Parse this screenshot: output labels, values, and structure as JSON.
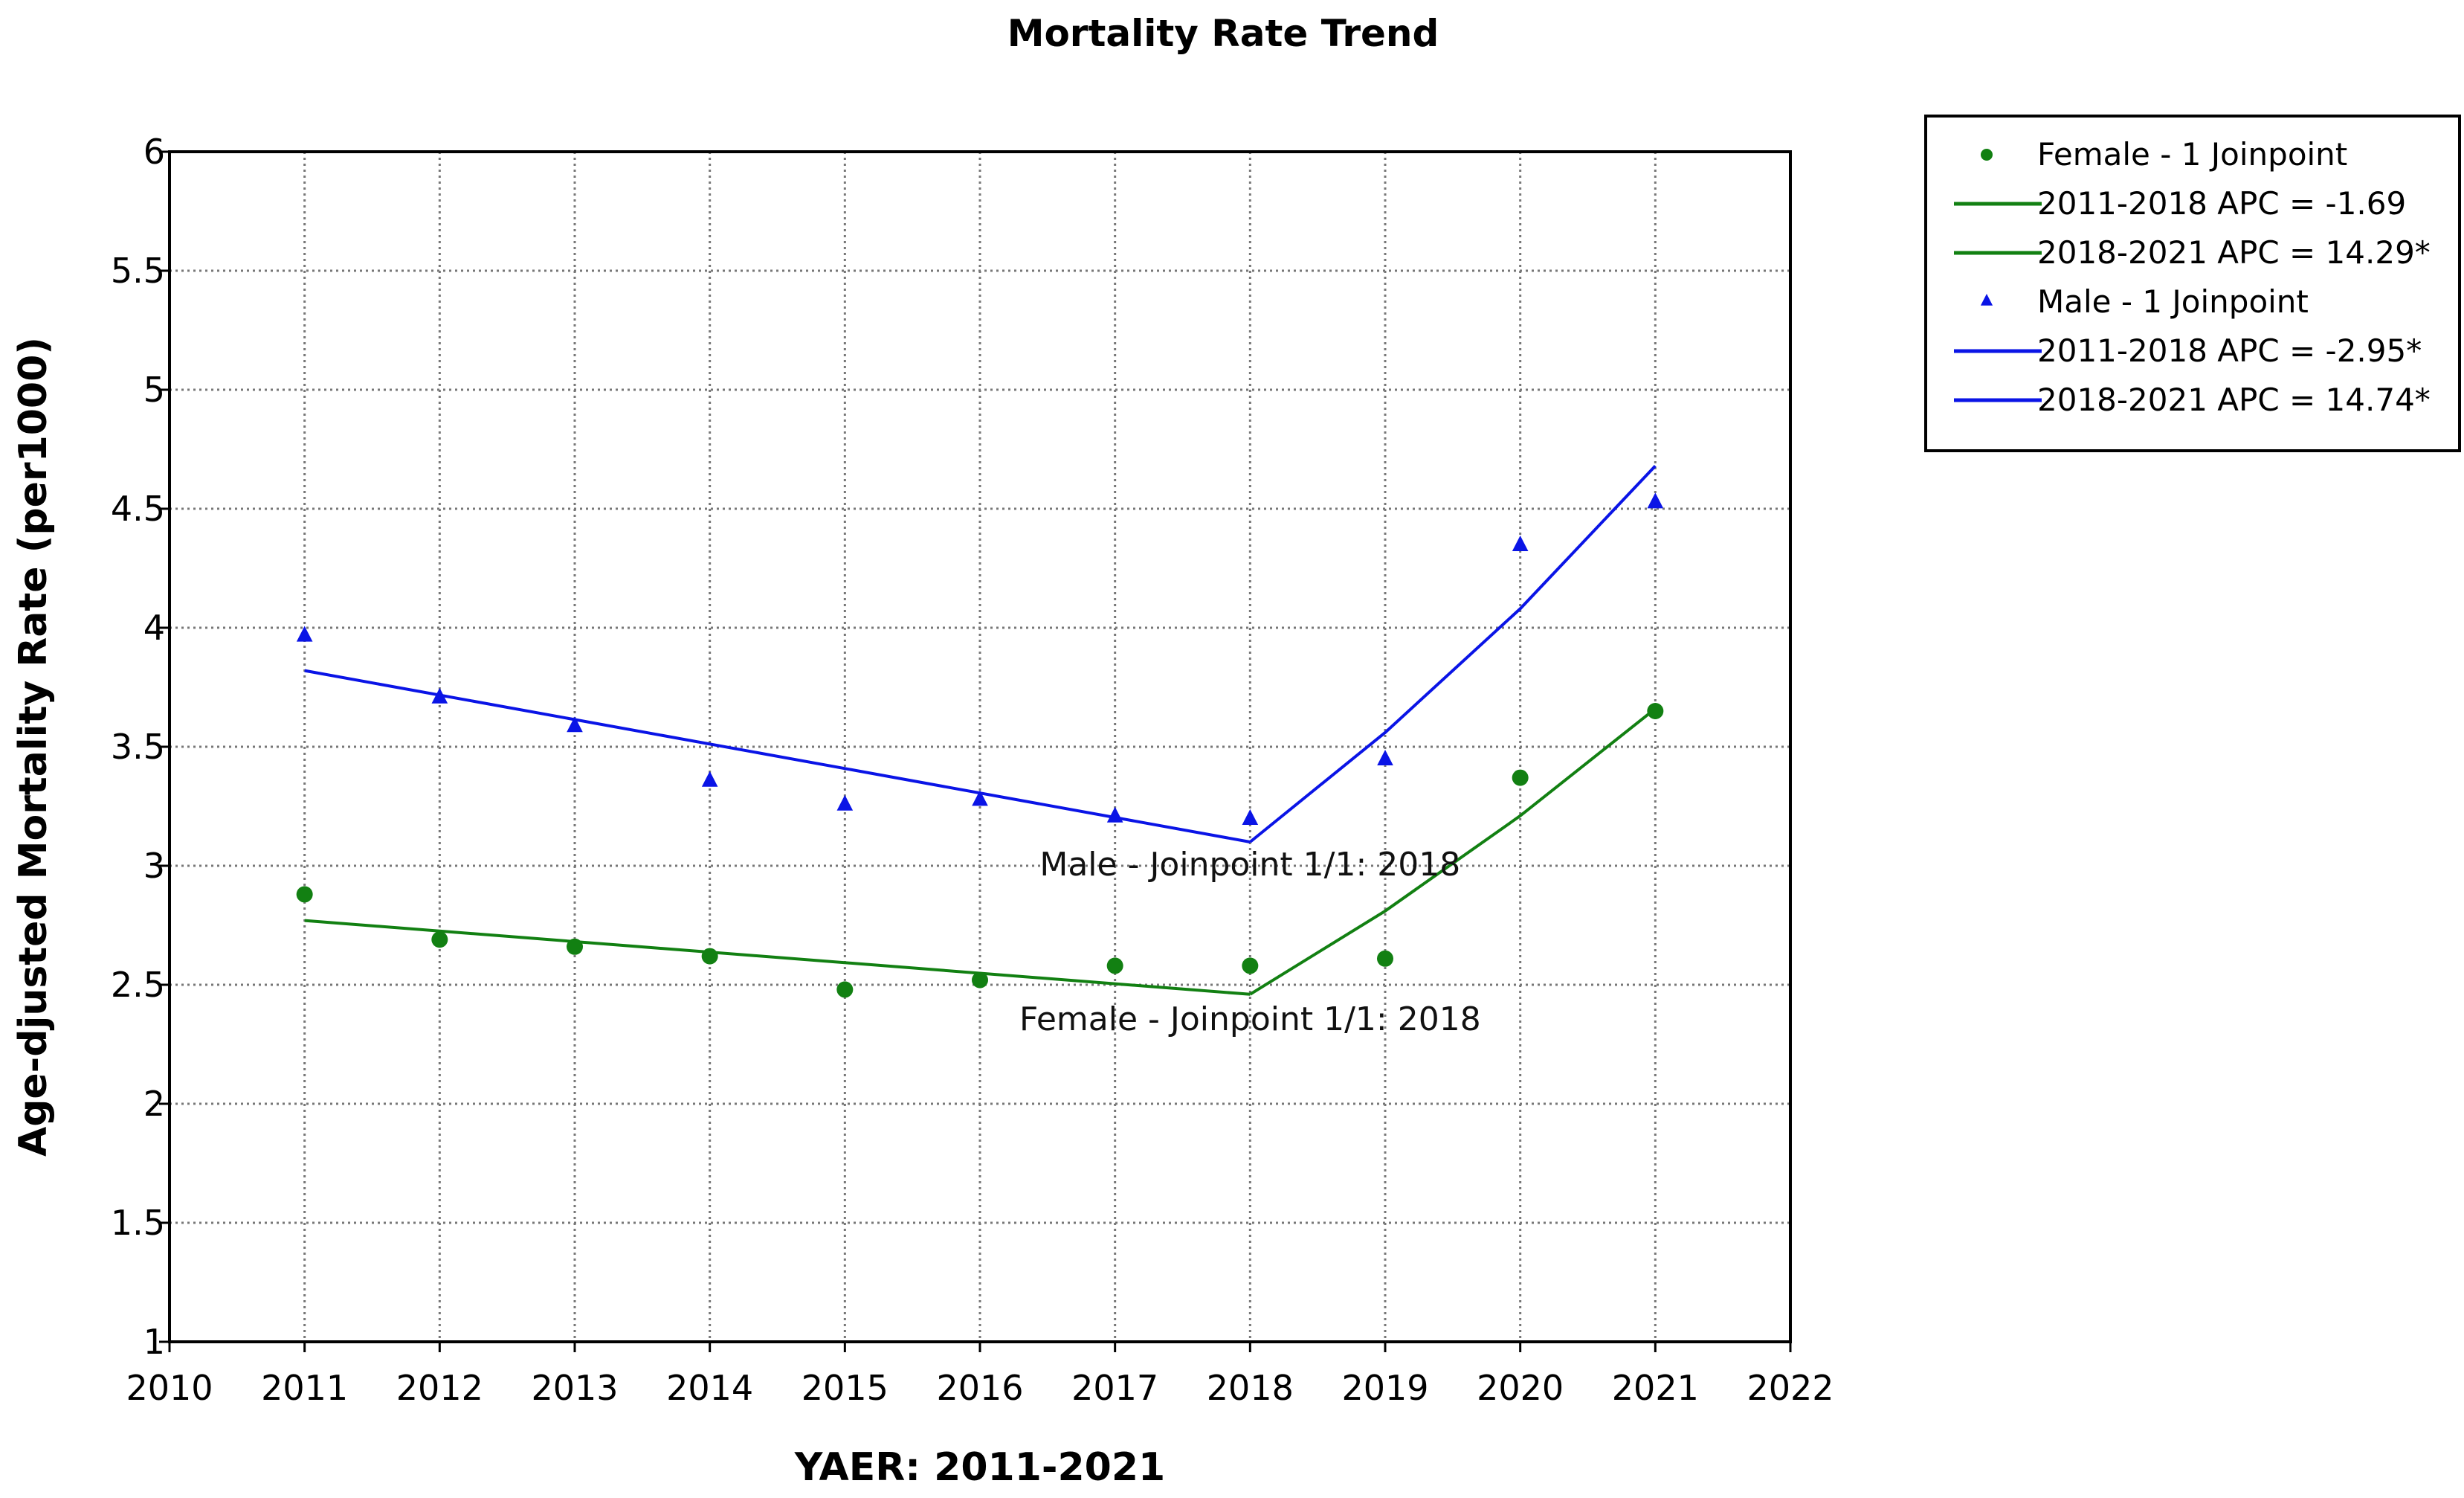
{
  "chart_data": {
    "type": "scatter",
    "title": "Mortality Rate Trend",
    "xlabel": "YAER: 2011-2021",
    "ylabel": "Age-djusted  Mortality Rate (per1000)",
    "xlim": [
      2010,
      2022
    ],
    "ylim": [
      1,
      6
    ],
    "x_ticks": [
      2010,
      2011,
      2012,
      2013,
      2014,
      2015,
      2016,
      2017,
      2018,
      2019,
      2020,
      2021,
      2022
    ],
    "y_ticks": [
      1,
      1.5,
      2,
      2.5,
      3,
      3.5,
      4,
      4.5,
      5,
      5.5,
      6
    ],
    "y_tick_labels": [
      "1",
      "1.5",
      "2",
      "2.5",
      "3",
      "3.5",
      "4",
      "4.5",
      "5",
      "5.5",
      "6"
    ],
    "grid": true,
    "legend_position": "outside-right-top",
    "x": [
      2011,
      2012,
      2013,
      2014,
      2015,
      2016,
      2017,
      2018,
      2019,
      2020,
      2021
    ],
    "series": [
      {
        "name": "Female - 1 Joinpoint",
        "marker": "circle",
        "color": "#128012",
        "values": [
          2.88,
          2.69,
          2.66,
          2.62,
          2.48,
          2.52,
          2.58,
          2.58,
          2.61,
          3.37,
          3.65
        ],
        "fit": [
          {
            "label": "2011-2018 APC  =  -1.69",
            "x": [
              2011,
              2018
            ],
            "y": [
              2.77,
              2.46
            ]
          },
          {
            "label": "2018-2021 APC  =  14.29*",
            "x": [
              2018,
              2019,
              2020,
              2021
            ],
            "y": [
              2.46,
              2.81,
              3.21,
              3.66
            ]
          }
        ]
      },
      {
        "name": "Male - 1 Joinpoint",
        "marker": "triangle",
        "color": "#0a14e6",
        "values": [
          3.97,
          3.71,
          3.59,
          3.36,
          3.26,
          3.28,
          3.21,
          3.2,
          3.45,
          4.35,
          4.53
        ],
        "fit": [
          {
            "label": "2011-2018 APC  =  -2.95*",
            "x": [
              2011,
              2018
            ],
            "y": [
              3.82,
              3.1
            ]
          },
          {
            "label": "2018-2021 APC  =  14.74*",
            "x": [
              2018,
              2019,
              2020,
              2021
            ],
            "y": [
              3.1,
              3.56,
              4.08,
              4.68
            ]
          }
        ]
      }
    ],
    "annotations": [
      {
        "text": "Male - Joinpoint 1/1:  2018",
        "x": 2018,
        "y": 2.96
      },
      {
        "text": "Female - Joinpoint 1/1:  2018",
        "x": 2018,
        "y": 2.31
      }
    ]
  }
}
